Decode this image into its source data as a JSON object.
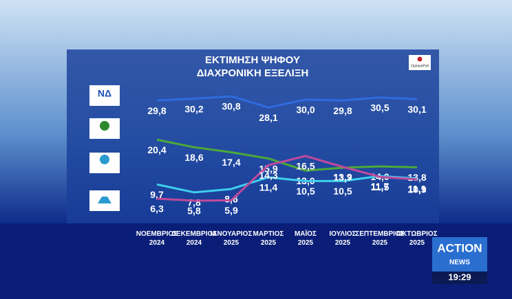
{
  "chart_data": {
    "type": "line",
    "title": "ΕΚΤΙΜΗΣΗ ΨΗΦΟΥ",
    "subtitle": "ΔΙΑΧΡΟΝΙΚΗ ΕΞΕΛΙΞΗ",
    "source_logo": "OpinionPoll",
    "categories": [
      "ΝΟΕΜΒΡΙΟΣ\n2024",
      "ΔΕΚΕΜΒΡΙΟΣ\n2024",
      "ΙΑΝΟΥΑΡΙΟΣ\n2025",
      "ΜΑΡΤΙΟΣ\n2025",
      "ΜΑΪΟΣ\n2025",
      "ΙΟΥΛΙΟΣ\n2025",
      "ΣΕΠΤΕΜΒΡΙΟΣ\n2025",
      "ΟΚΤΩΒΡΙΟΣ\n2025"
    ],
    "series": [
      {
        "color": "#2f6be0",
        "values": [
          29.8,
          30.2,
          30.8,
          28.1,
          30.0,
          29.8,
          30.5,
          30.1
        ],
        "value_labels": [
          "29,8",
          "30,2",
          "30,8",
          "28,1",
          "30,0",
          "29,8",
          "30,5",
          "30,1"
        ]
      },
      {
        "color": "#4caa3a",
        "values": [
          20.4,
          18.6,
          17.4,
          15.9,
          13.0,
          13.7,
          14.0,
          13.8
        ],
        "value_labels": [
          "20,4",
          "18,6",
          "17,4",
          "15,9",
          "13,0",
          "13,7",
          "14,0",
          "13,8"
        ]
      },
      {
        "color": "#3fd0ee",
        "values": [
          9.7,
          7.8,
          8.6,
          11.4,
          10.5,
          10.5,
          11.7,
          11.1
        ],
        "value_labels": [
          "9,7",
          "7,8",
          "8,6",
          "11,4",
          "10,5",
          "10,5",
          "11,7",
          "11,1"
        ]
      },
      {
        "color": "#c04a9a",
        "values": [
          6.3,
          5.8,
          5.9,
          14.3,
          16.5,
          13.9,
          11.5,
          10.9
        ],
        "value_labels": [
          "6,3",
          "5,8",
          "5,9",
          "14,3",
          "16,5",
          "13,9",
          "11,5",
          "10,9"
        ]
      }
    ]
  },
  "broadcast": {
    "channel_top": "ACTION",
    "channel_bottom": "NEWS",
    "time": "19:29"
  }
}
